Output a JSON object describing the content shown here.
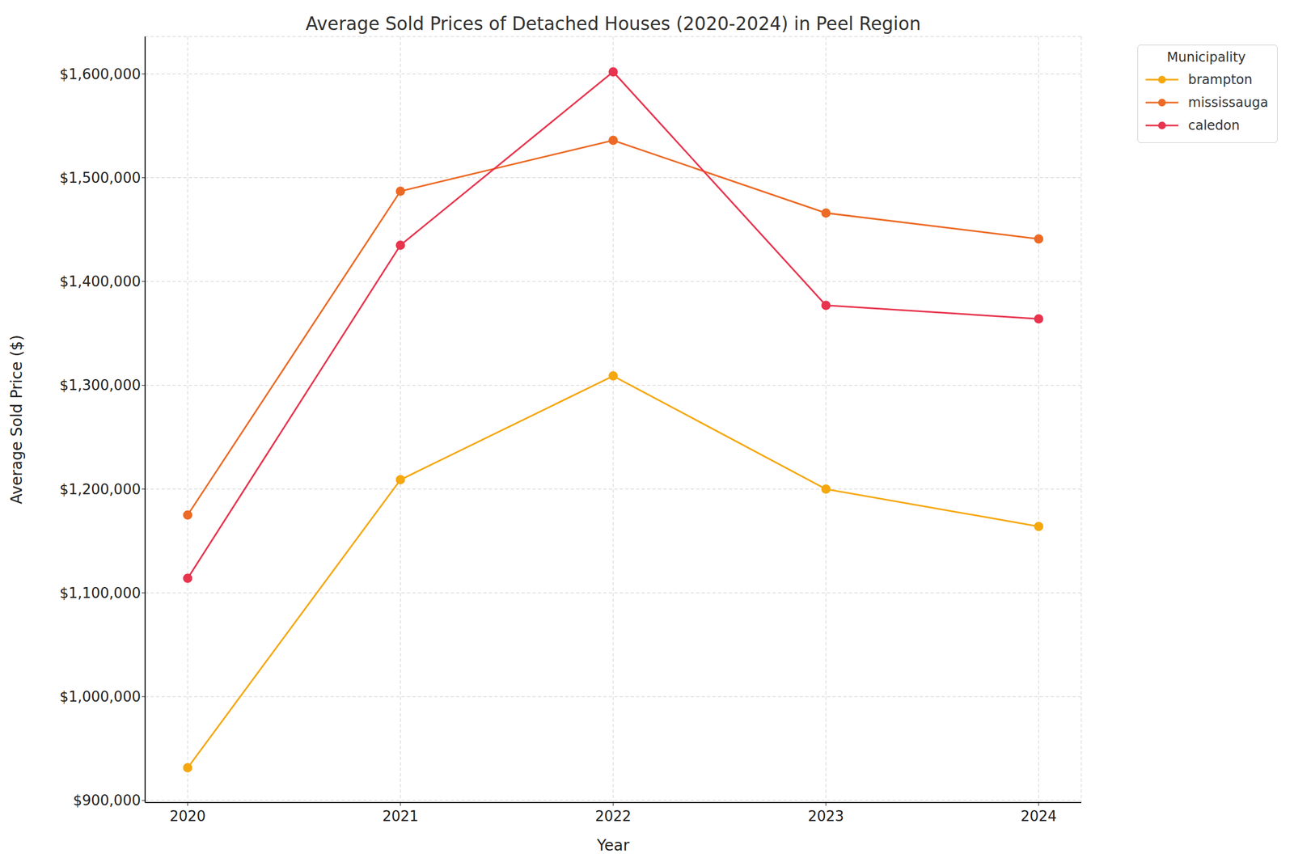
{
  "chart_data": {
    "type": "line",
    "title": "Average Sold Prices of Detached Houses (2020-2024) in Peel Region",
    "x_label": "Year",
    "y_label": "Average Sold Price ($)",
    "x": [
      2020,
      2021,
      2022,
      2023,
      2024
    ],
    "xlim": [
      2019.8,
      2024.2
    ],
    "xticks": [
      2020,
      2021,
      2022,
      2023,
      2024
    ],
    "ylim": [
      898000,
      1636000
    ],
    "yticks": [
      {
        "value": 900000,
        "label": "$900,000"
      },
      {
        "value": 1000000,
        "label": "$1,000,000"
      },
      {
        "value": 1100000,
        "label": "$1,100,000"
      },
      {
        "value": 1200000,
        "label": "$1,200,000"
      },
      {
        "value": 1300000,
        "label": "$1,300,000"
      },
      {
        "value": 1400000,
        "label": "$1,400,000"
      },
      {
        "value": 1500000,
        "label": "$1,500,000"
      },
      {
        "value": 1600000,
        "label": "$1,600,000"
      }
    ],
    "grid": true,
    "legend": "outside",
    "legend_title": "Municipality",
    "marker": "circle",
    "series": [
      {
        "name": "brampton",
        "color": "#f5a70e",
        "values": [
          931500,
          1209000,
          1309000,
          1200000,
          1164000
        ]
      },
      {
        "name": "mississauga",
        "color": "#ec6a25",
        "values": [
          1175000,
          1487000,
          1536000,
          1466000,
          1441000
        ]
      },
      {
        "name": "caledon",
        "color": "#e8344e",
        "values": [
          1114000,
          1435000,
          1602000,
          1377000,
          1364000
        ]
      }
    ]
  }
}
